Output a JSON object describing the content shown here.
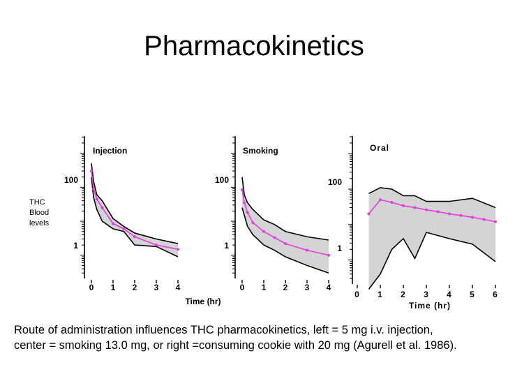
{
  "slide": {
    "title": "Pharmacokinetics",
    "caption_line1": "Route of administration influences THC pharmacokinetics, left = 5 mg i.v. injection,",
    "caption_line2": "center = smoking 13.0 mg, or right =consuming cookie with 20 mg (Agurell et al. 1986)."
  },
  "colors": {
    "band": "#d4d4d4",
    "mean": "#e23be2",
    "axis": "#000000"
  },
  "ylabel": [
    "THC",
    "Blood",
    "levels"
  ],
  "shared_xlabel": "Time (hr)",
  "chart_data": [
    {
      "type": "area",
      "title": "Injection",
      "y_scale": "log",
      "y_tick_labels": [
        "1",
        "100"
      ],
      "x_ticks": [
        0,
        1,
        2,
        3,
        4
      ],
      "xlim": [
        -0.25,
        4
      ],
      "ylim_log10": [
        -0.6,
        3.3
      ],
      "upper": {
        "x": [
          0,
          0.1,
          0.25,
          0.5,
          1,
          1.5,
          2,
          3,
          4
        ],
        "y": [
          500,
          150,
          60,
          40,
          12,
          7,
          4.5,
          3,
          2.2
        ]
      },
      "lower": {
        "x": [
          0,
          0.1,
          0.25,
          0.5,
          1,
          1.5,
          2,
          3,
          4
        ],
        "y": [
          200,
          50,
          22,
          10,
          6,
          5,
          2,
          1.8,
          0.9
        ]
      },
      "series": [
        {
          "x": [
            0,
            0.1,
            0.25,
            0.5,
            1,
            1.5,
            2,
            3,
            4
          ],
          "y": [
            300,
            90,
            45,
            25,
            8.5,
            6,
            3.5,
            2,
            1.5
          ]
        }
      ]
    },
    {
      "type": "area",
      "title": "Smoking",
      "y_scale": "log",
      "y_tick_labels": [
        "1",
        "100"
      ],
      "x_ticks": [
        0,
        1,
        2,
        3,
        4
      ],
      "xlim": [
        -0.25,
        4
      ],
      "ylim_log10": [
        -0.6,
        3.3
      ],
      "upper": {
        "x": [
          0,
          0.1,
          0.25,
          0.5,
          1,
          1.5,
          2,
          3,
          4
        ],
        "y": [
          200,
          60,
          35,
          22,
          11,
          8,
          5,
          3.5,
          2.8
        ]
      },
      "lower": {
        "x": [
          0,
          0.1,
          0.25,
          0.5,
          1,
          1.5,
          2,
          3,
          4
        ],
        "y": [
          25,
          15,
          7,
          4,
          2,
          1.4,
          0.9,
          0.5,
          0.3
        ]
      },
      "series": [
        {
          "x": [
            0,
            0.1,
            0.25,
            0.5,
            1,
            1.5,
            2,
            3,
            4
          ],
          "y": [
            85,
            35,
            18,
            9,
            5,
            3.3,
            2.2,
            1.4,
            1
          ]
        }
      ]
    },
    {
      "type": "area",
      "title": "Oral",
      "y_scale": "log",
      "y_tick_labels": [
        "1",
        "100"
      ],
      "x_ticks": [
        0,
        1,
        2,
        3,
        4,
        5,
        6
      ],
      "xlim": [
        -0.3,
        6
      ],
      "ylim_log10": [
        -0.6,
        3.3
      ],
      "xlabel": "Time (hr)",
      "upper": {
        "x": [
          0.5,
          1,
          1.5,
          2,
          2.5,
          3,
          4,
          5,
          6
        ],
        "y": [
          75,
          110,
          100,
          65,
          65,
          45,
          45,
          55,
          30
        ]
      },
      "lower": {
        "x": [
          0.5,
          1,
          1.5,
          2,
          2.5,
          3,
          4,
          5,
          6
        ],
        "y": [
          0.15,
          0.4,
          2,
          4,
          1.1,
          6,
          4,
          2.8,
          0.9
        ]
      },
      "series": [
        {
          "x": [
            0.5,
            1,
            1.5,
            2,
            2.5,
            3,
            3.5,
            4,
            4.5,
            5,
            5.5,
            6
          ],
          "y": [
            20,
            50,
            42,
            34,
            30,
            26,
            23,
            20,
            18,
            16,
            14,
            12
          ]
        }
      ]
    }
  ]
}
